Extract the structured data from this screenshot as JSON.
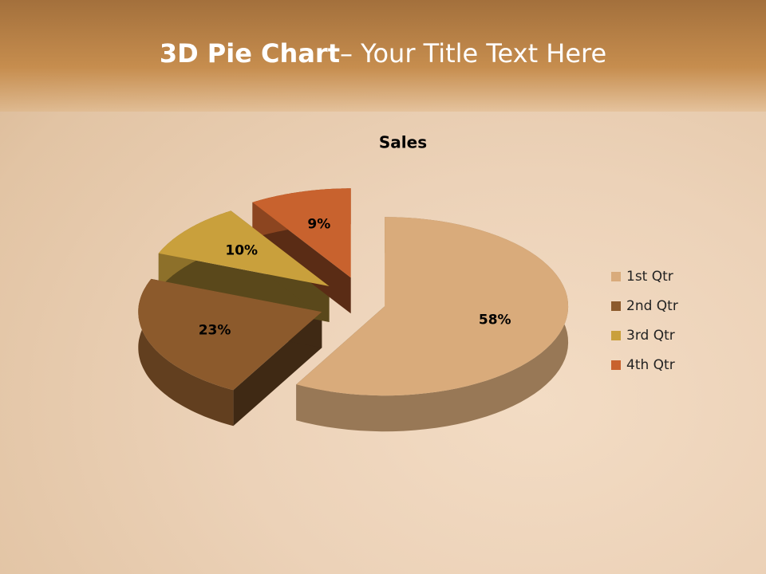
{
  "slide": {
    "title_bold": "3D Pie Chart",
    "title_rest": "– Your Title Text Here"
  },
  "chart_data": {
    "type": "pie3d",
    "title": "Sales",
    "categories": [
      "1st Qtr",
      "2nd Qtr",
      "3rd Qtr",
      "4th Qtr"
    ],
    "series": [
      {
        "name": "Sales",
        "values": [
          58,
          23,
          10,
          9
        ],
        "value_labels": [
          "58%",
          "23%",
          "10%",
          "9%"
        ],
        "colors": [
          "#d9ab7b",
          "#8c5a2c",
          "#c9a03c",
          "#c8622e"
        ]
      }
    ],
    "legend": "right"
  }
}
